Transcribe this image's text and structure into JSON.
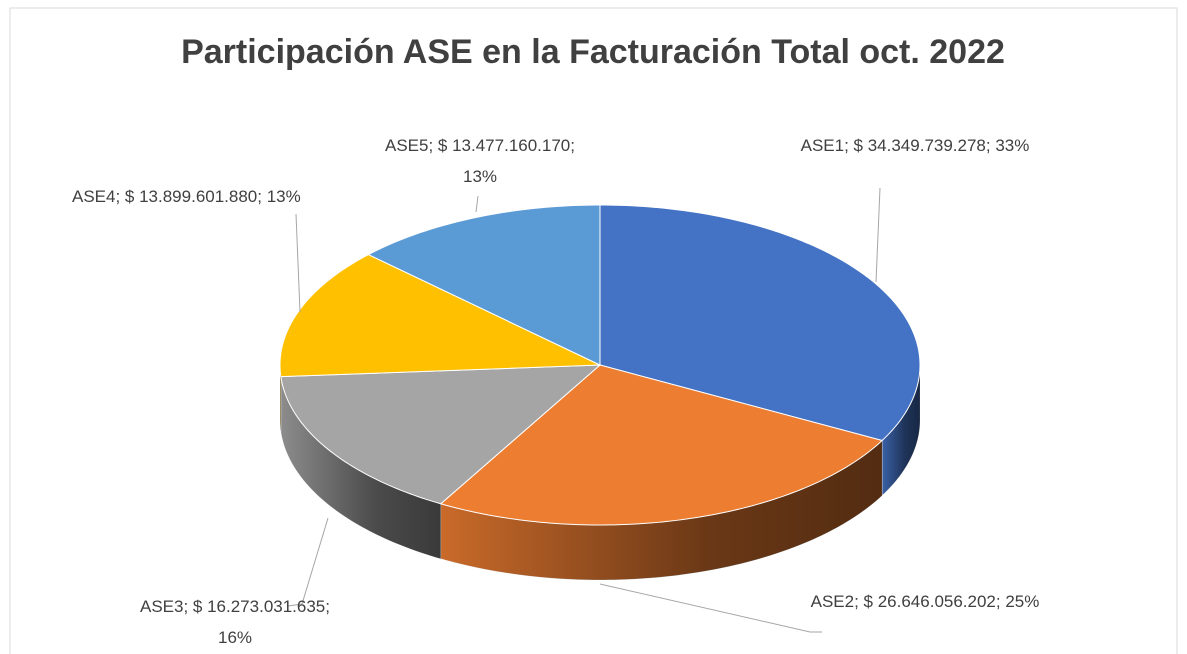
{
  "chart_data": {
    "type": "pie3d",
    "title": "Participación ASE en la Facturación Total oct. 2022",
    "categories": [
      "ASE1",
      "ASE2",
      "ASE3",
      "ASE4",
      "ASE5"
    ],
    "values": [
      34349739278,
      26646056202,
      16273031635,
      13899601880,
      13477160170
    ],
    "value_labels": [
      "ASE1; $ 34.349.739.278; 33%",
      "ASE2; $ 26.646.056.202; 25%",
      "ASE3; $ 16.273.031.635; 16%",
      "ASE4; $ 13.899.601.880; 13%",
      "ASE5; $ 13.477.160.170; 13%"
    ],
    "colors": [
      "#4472c4",
      "#ed7d31",
      "#a5a5a5",
      "#ffc000",
      "#5b9bd5"
    ]
  }
}
